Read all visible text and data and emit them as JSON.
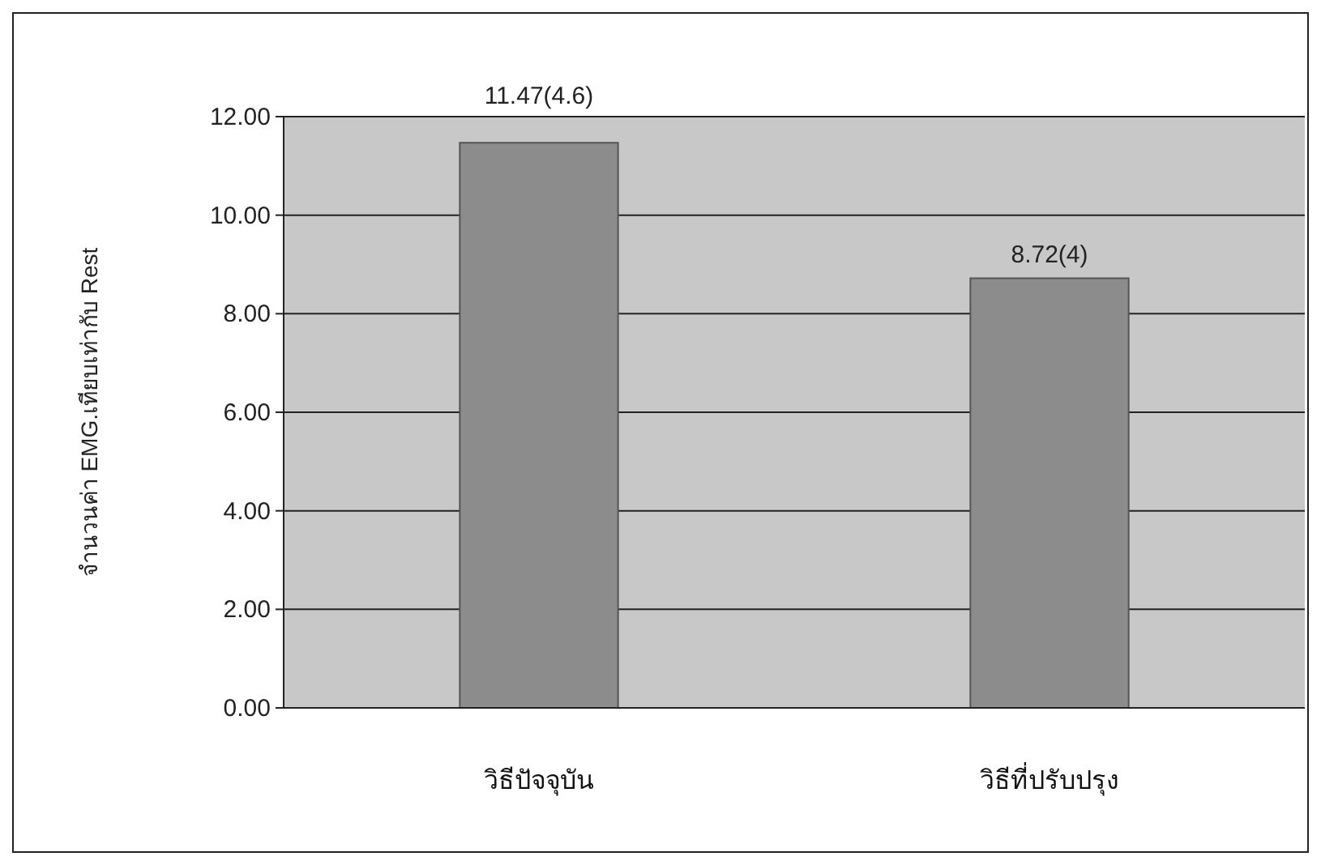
{
  "chart_data": {
    "type": "bar",
    "categories": [
      "วิธีปัจจุบัน",
      "วิธีที่ปรับปรุง"
    ],
    "values": [
      11.47,
      8.72
    ],
    "value_labels": [
      "11.47(4.6)",
      "8.72(4)"
    ],
    "color": "#8c8c8c",
    "ylabel": "จำนวนค่า EMG.เทียบเท่ากับ Rest",
    "ylim": [
      0,
      12
    ],
    "yticks": [
      {
        "value": 0,
        "label": "0.00"
      },
      {
        "value": 2,
        "label": "2.00"
      },
      {
        "value": 4,
        "label": "4.00"
      },
      {
        "value": 6,
        "label": "6.00"
      },
      {
        "value": 8,
        "label": "8.00"
      },
      {
        "value": 10,
        "label": "10.00"
      },
      {
        "value": 12,
        "label": "12.00"
      }
    ],
    "grid": "y"
  }
}
